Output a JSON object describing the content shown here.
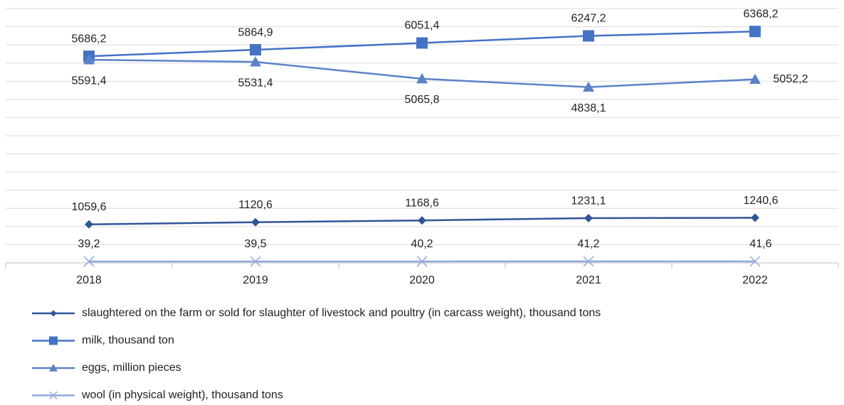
{
  "chart_data": {
    "type": "line",
    "categories": [
      "2018",
      "2019",
      "2020",
      "2021",
      "2022"
    ],
    "series": [
      {
        "name": "slaughtered on the farm or sold for slaughter of livestock and poultry (in carcass weight), thousand tons",
        "color": "#2f5597",
        "marker": "diamond",
        "values": [
          1059.6,
          1120.6,
          1168.6,
          1231.1,
          1240.6
        ],
        "value_labels": [
          "1059,6",
          "1120,6",
          "1168,6",
          "1231,1",
          "1240,6"
        ]
      },
      {
        "name": "milk, thousand ton",
        "color": "#4472c4",
        "marker": "square",
        "values": [
          5686.2,
          5864.9,
          6051.4,
          6247.2,
          6368.2
        ],
        "value_labels": [
          "5686,2",
          "5864,9",
          "6051,4",
          "6247,2",
          "6368,2"
        ]
      },
      {
        "name": "eggs, million pieces",
        "color": "#5b82c8",
        "marker": "triangle",
        "values": [
          5591.4,
          5531.4,
          5065.8,
          4838.1,
          5052.2
        ],
        "value_labels": [
          "5591,4",
          "5531,4",
          "5065,8",
          "4838,1",
          "5052,2"
        ]
      },
      {
        "name": "wool (in physical weight), thousand tons",
        "color": "#8faadc",
        "marker": "x",
        "values": [
          39.2,
          39.5,
          40.2,
          41.2,
          41.6
        ],
        "value_labels": [
          "39,2",
          "39,5",
          "40,2",
          "41,2",
          "41,6"
        ]
      }
    ],
    "ylim": [
      0,
      7000
    ],
    "yticks": [
      0,
      500,
      1000,
      1500,
      2000,
      2500,
      3000,
      3500,
      4000,
      4500,
      5000,
      5500,
      6000,
      6500,
      7000
    ],
    "grid": true,
    "legend": "bottom"
  }
}
